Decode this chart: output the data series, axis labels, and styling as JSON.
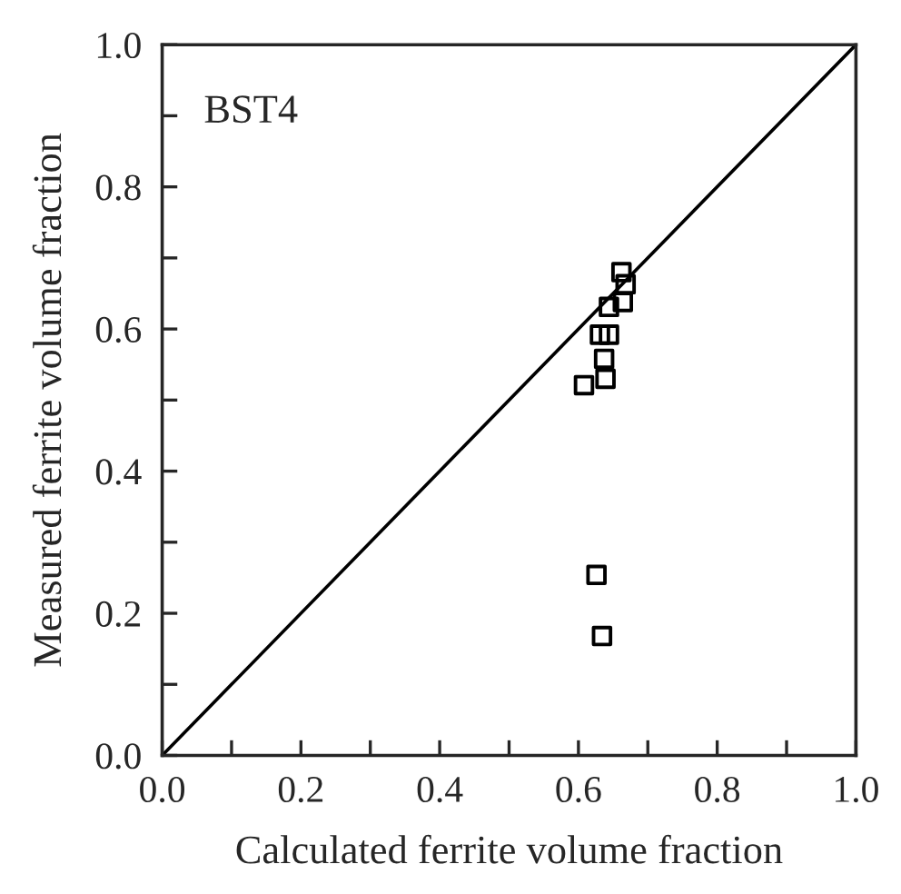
{
  "chart_data": {
    "type": "scatter",
    "xlabel": "Calculated ferrite volume fraction",
    "ylabel": "Measured ferrite volume fraction",
    "annotations": [
      "BST4"
    ],
    "xlim": [
      0,
      1
    ],
    "ylim": [
      0,
      1
    ],
    "xticks": [
      {
        "value": 0,
        "label": "0.0"
      },
      {
        "value": 0.1,
        "label": null
      },
      {
        "value": 0.2,
        "label": "0.2"
      },
      {
        "value": 0.3,
        "label": null
      },
      {
        "value": 0.4,
        "label": "0.4"
      },
      {
        "value": 0.5,
        "label": null
      },
      {
        "value": 0.6,
        "label": "0.6"
      },
      {
        "value": 0.7,
        "label": null
      },
      {
        "value": 0.8,
        "label": "0.8"
      },
      {
        "value": 0.9,
        "label": null
      },
      {
        "value": 1,
        "label": "1.0"
      }
    ],
    "yticks": [
      {
        "value": 0,
        "label": "0.0"
      },
      {
        "value": 0.1,
        "label": null
      },
      {
        "value": 0.2,
        "label": "0.2"
      },
      {
        "value": 0.3,
        "label": null
      },
      {
        "value": 0.4,
        "label": "0.4"
      },
      {
        "value": 0.5,
        "label": null
      },
      {
        "value": 0.6,
        "label": "0.6"
      },
      {
        "value": 0.7,
        "label": null
      },
      {
        "value": 0.8,
        "label": "0.8"
      },
      {
        "value": 0.9,
        "label": null
      },
      {
        "value": 1,
        "label": "1.0"
      }
    ],
    "grid": false,
    "legend": false,
    "marker": "square",
    "series": [
      {
        "color": "#000000",
        "x": [
          0.662,
          0.668,
          0.664,
          0.644,
          0.631,
          0.644,
          0.637,
          0.639,
          0.608,
          0.626,
          0.634
        ],
        "values": [
          0.68,
          0.663,
          0.638,
          0.631,
          0.592,
          0.592,
          0.558,
          0.53,
          0.521,
          0.254,
          0.168
        ]
      },
      {
        "type": "line",
        "color": "#000000",
        "x": [
          0,
          1
        ],
        "values": [
          0,
          1
        ],
        "marker": "none",
        "line_style": "solid"
      }
    ]
  }
}
